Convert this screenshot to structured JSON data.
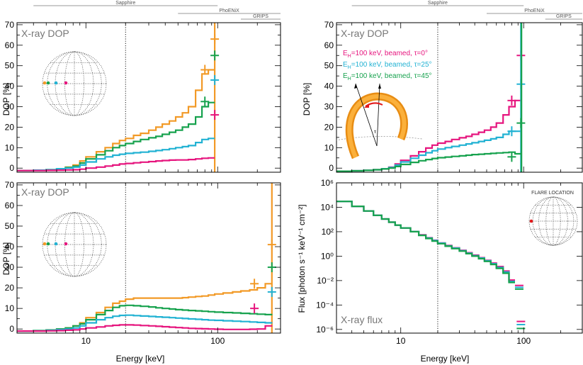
{
  "colors": {
    "tau0": "#e6157e",
    "tau25": "#22b2d3",
    "tau45": "#17a24e",
    "base": "#f29a27",
    "flare_dot": "#e31a1c"
  },
  "figure": {
    "instruments": [
      {
        "name": "Sapphire",
        "range": [
          4,
          100
        ]
      },
      {
        "name": "PhoENiX",
        "range": [
          50,
          300
        ]
      },
      {
        "name": "GRIPS",
        "range": [
          150,
          300
        ]
      }
    ],
    "xlabel": "Energy [keV]",
    "dop_ylabel": "DOP [%]",
    "flux_ylabel": "Flux [photon s⁻¹ keV⁻¹ cm⁻²]",
    "reference_energy_keV": 20
  },
  "panels": {
    "top_left": {
      "label": "X-ray DOP"
    },
    "bottom_left": {
      "label": "X-ray DOP"
    },
    "top_right": {
      "label": "X-ray DOP",
      "legend": [
        {
          "eh": "E",
          "sub": "H",
          "text": "=100 keV, beamed, τ=0°",
          "series": "tau0"
        },
        {
          "eh": "E",
          "sub": "H",
          "text": "=100 keV, beamed, τ=25°",
          "series": "tau25"
        },
        {
          "eh": "E",
          "sub": "H",
          "text": "=100 keV, beamed, τ=45°",
          "series": "tau45"
        }
      ]
    },
    "bottom_right": {
      "label": "X-ray flux",
      "inset_title": "FLARE LOCATION"
    }
  },
  "chart_data": [
    {
      "type": "line",
      "id": "top_left",
      "title": "X-ray DOP",
      "xlabel": "Energy [keV]",
      "ylabel": "DOP [%]",
      "xscale": "log",
      "xlim": [
        3,
        300
      ],
      "ylim": [
        -2,
        71
      ],
      "xticks": [
        10,
        100
      ],
      "yticks": [
        0,
        10,
        20,
        30,
        40,
        50,
        60,
        70
      ],
      "edges": [
        3,
        4,
        5,
        6,
        7,
        8,
        9,
        10,
        12,
        14,
        16,
        18,
        20,
        23,
        26,
        30,
        34,
        38,
        43,
        48,
        54,
        60,
        68,
        76,
        85,
        95
      ],
      "series": [
        {
          "name": "orange",
          "color_key": "base",
          "values": [
            -1.2,
            -1,
            -0.8,
            -0.3,
            0.5,
            1.5,
            3.5,
            5.5,
            8,
            10,
            12,
            13.5,
            14.5,
            16,
            17,
            18.5,
            20,
            21.5,
            23,
            25,
            27,
            30,
            38,
            46,
            48
          ],
          "pol_points": [
            {
              "x": 80,
              "y": 48
            },
            {
              "x": 95,
              "y": 63
            }
          ],
          "vline_x": 95
        },
        {
          "name": "green",
          "color_key": "tau45",
          "values": [
            -1.2,
            -1,
            -0.8,
            -0.3,
            0.3,
            1,
            2.5,
            4.5,
            6.5,
            8.5,
            10,
            11,
            12,
            13,
            14,
            14.8,
            15.5,
            16.5,
            17.5,
            18.5,
            20,
            21.5,
            25,
            30,
            32
          ],
          "pol_points": [
            {
              "x": 80,
              "y": 32.5
            },
            {
              "x": 95,
              "y": 55
            }
          ]
        },
        {
          "name": "cyan",
          "color_key": "tau25",
          "values": [
            -1.2,
            -1,
            -0.8,
            -0.3,
            0,
            0.5,
            1.5,
            3,
            4.5,
            5.5,
            6.3,
            6.8,
            7.2,
            7.5,
            7.8,
            8.2,
            8.6,
            9,
            9.5,
            10,
            10.5,
            11,
            12.5,
            14,
            14.5
          ],
          "pol_points": [
            {
              "x": 95,
              "y": 43
            }
          ]
        },
        {
          "name": "magenta",
          "color_key": "tau0",
          "values": [
            -1.2,
            -1.2,
            -1.1,
            -1,
            -0.9,
            -0.8,
            -0.5,
            0,
            0.5,
            1,
            1.5,
            2,
            2.3,
            2.6,
            2.9,
            3.2,
            3.5,
            3.7,
            3.9,
            4,
            4,
            4.2,
            4.5,
            4.8,
            5
          ],
          "pol_points": [
            {
              "x": 95,
              "y": 26
            }
          ]
        }
      ]
    },
    {
      "type": "line",
      "id": "bottom_left",
      "title": "X-ray DOP",
      "xlabel": "Energy [keV]",
      "ylabel": "DOP [%]",
      "xscale": "log",
      "xlim": [
        3,
        300
      ],
      "ylim": [
        -2,
        71
      ],
      "xticks": [
        10,
        100
      ],
      "yticks": [
        0,
        10,
        20,
        30,
        40,
        50,
        60,
        70
      ],
      "edges": [
        3,
        4,
        5,
        6,
        7,
        8,
        9,
        10,
        12,
        14,
        16,
        18,
        20,
        23,
        26,
        30,
        34,
        38,
        43,
        48,
        54,
        60,
        68,
        76,
        85,
        95,
        110,
        130,
        150,
        175,
        200,
        230,
        260
      ],
      "series": [
        {
          "name": "orange",
          "color_key": "base",
          "values": [
            -1,
            -0.8,
            -0.5,
            0,
            0.5,
            1.5,
            3,
            5.5,
            8,
            10.5,
            12.5,
            13.5,
            14.5,
            15,
            15,
            15,
            15,
            15,
            15,
            15,
            15.2,
            15.5,
            15.8,
            16,
            16.5,
            17,
            17.5,
            18,
            18.5,
            19,
            20,
            22
          ],
          "pol_points": [
            {
              "x": 190,
              "y": 22
            },
            {
              "x": 258,
              "y": 41
            }
          ],
          "vline_x": 258
        },
        {
          "name": "green",
          "color_key": "tau45",
          "values": [
            -1,
            -0.8,
            -0.5,
            0,
            0.5,
            1.5,
            2.5,
            4.5,
            7,
            9,
            10.5,
            11.3,
            11.5,
            11.3,
            11,
            10.7,
            10.3,
            10,
            9.7,
            9.4,
            9.2,
            9,
            8.8,
            8.6,
            8.4,
            8.2,
            8,
            7.8,
            7.6,
            7.4,
            7.2,
            7
          ],
          "pol_points": [
            {
              "x": 258,
              "y": 30
            }
          ]
        },
        {
          "name": "cyan",
          "color_key": "tau25",
          "values": [
            -1,
            -0.9,
            -0.7,
            -0.3,
            0,
            0.5,
            1.5,
            3,
            4.5,
            5.5,
            6.2,
            6.6,
            6.7,
            6.5,
            6.3,
            6.1,
            5.9,
            5.7,
            5.5,
            5.3,
            5.1,
            4.9,
            4.7,
            4.5,
            4.3,
            4.2,
            4,
            3.8,
            3.6,
            3.4,
            3.2,
            3
          ],
          "pol_points": [
            {
              "x": 258,
              "y": 18
            }
          ]
        },
        {
          "name": "magenta",
          "color_key": "tau0",
          "values": [
            -1,
            -1,
            -0.9,
            -0.8,
            -0.6,
            -0.4,
            0,
            0.5,
            1,
            1.5,
            1.8,
            2,
            2,
            1.9,
            1.7,
            1.5,
            1.3,
            1.1,
            0.9,
            0.7,
            0.5,
            0.3,
            0.2,
            0.1,
            0,
            -0.1,
            -0.2,
            -0.2,
            -0.2,
            -0.1,
            0,
            1.5
          ],
          "pol_points": [
            {
              "x": 190,
              "y": 10
            }
          ]
        }
      ]
    },
    {
      "type": "line",
      "id": "top_right",
      "title": "X-ray DOP",
      "xlabel": "Energy [keV]",
      "ylabel": "DOP [%]",
      "xscale": "log",
      "xlim": [
        3,
        300
      ],
      "ylim": [
        -2,
        71
      ],
      "xticks": [
        10,
        100
      ],
      "yticks": [
        0,
        10,
        20,
        30,
        40,
        50,
        60,
        70
      ],
      "edges": [
        3,
        4,
        5,
        6,
        7,
        8,
        9,
        10,
        12,
        14,
        16,
        18,
        20,
        23,
        26,
        30,
        34,
        38,
        43,
        48,
        54,
        60,
        68,
        76,
        85,
        95
      ],
      "series": [
        {
          "name": "τ=0°",
          "color_key": "tau0",
          "values": [
            -1.5,
            -1.3,
            -1.1,
            -0.8,
            -0.3,
            0.5,
            2,
            3.8,
            6,
            8,
            9.8,
            11.2,
            12.2,
            13,
            14,
            14.8,
            15.5,
            16.5,
            17.5,
            18.5,
            20,
            22,
            26,
            30,
            33
          ],
          "pol_points": [
            {
              "x": 80,
              "y": 33
            },
            {
              "x": 95,
              "y": 55
            }
          ]
        },
        {
          "name": "τ=25°",
          "color_key": "tau25",
          "values": [
            -1.5,
            -1.3,
            -1.1,
            -0.8,
            -0.3,
            0.3,
            1.5,
            3,
            4.8,
            6.3,
            7.5,
            8.5,
            9.3,
            10,
            10.6,
            11.2,
            11.8,
            12.4,
            13,
            13.6,
            14.3,
            15,
            16.5,
            18,
            18
          ],
          "pol_points": [
            {
              "x": 80,
              "y": 18
            },
            {
              "x": 95,
              "y": 41
            }
          ],
          "vline_x": 95
        },
        {
          "name": "τ=45°",
          "color_key": "tau45",
          "values": [
            -1.5,
            -1.3,
            -1.1,
            -0.8,
            -0.4,
            0,
            0.8,
            1.8,
            2.8,
            3.6,
            4.2,
            4.7,
            5.1,
            5.4,
            5.7,
            6,
            6.3,
            6.6,
            6.8,
            7,
            7.2,
            7.4,
            7.6,
            7.8,
            7
          ],
          "pol_points": [
            {
              "x": 80,
              "y": 5.5
            },
            {
              "x": 95,
              "y": 22
            }
          ],
          "vline_x": 96
        }
      ]
    },
    {
      "type": "line",
      "id": "bottom_right",
      "title": "X-ray flux",
      "xlabel": "Energy [keV]",
      "ylabel": "Flux [photon s⁻¹ keV⁻¹ cm⁻²]",
      "xscale": "log",
      "yscale": "log",
      "xlim": [
        3,
        300
      ],
      "ylim": [
        5e-07,
        1000000
      ],
      "xticks": [
        10,
        100
      ],
      "yticks": [
        1e-06,
        0.0001,
        0.01,
        1,
        100,
        10000,
        1000000
      ],
      "ytick_labels": [
        "10⁻⁶",
        "10⁻⁴",
        "10⁻²",
        "10⁰",
        "10²",
        "10⁴",
        "10⁶"
      ],
      "edges": [
        3,
        4,
        5,
        6,
        7,
        8,
        9,
        10,
        12,
        14,
        16,
        18,
        20,
        23,
        26,
        30,
        34,
        38,
        43,
        48,
        54,
        60,
        68,
        76,
        85
      ],
      "series": [
        {
          "name": "τ=0°",
          "color_key": "tau0",
          "values": [
            30000,
            12000,
            5000,
            2200,
            1100,
            600,
            350,
            200,
            100,
            55,
            32,
            20,
            12,
            7.5,
            4.8,
            3,
            1.9,
            1.2,
            0.75,
            0.45,
            0.27,
            0.14,
            0.06,
            0.011
          ],
          "extra_points": [
            {
              "x": 92,
              "y": 0.004
            },
            {
              "x": 95,
              "y": 4.5e-06
            }
          ]
        },
        {
          "name": "τ=25°",
          "color_key": "tau25",
          "values": [
            30000,
            12000,
            5000,
            2200,
            1100,
            600,
            350,
            200,
            100,
            52,
            30,
            19,
            11.5,
            7,
            4.5,
            2.8,
            1.75,
            1.1,
            0.7,
            0.42,
            0.24,
            0.12,
            0.05,
            0.0085
          ],
          "extra_points": [
            {
              "x": 92,
              "y": 0.0028
            },
            {
              "x": 95,
              "y": 2.5e-06
            }
          ]
        },
        {
          "name": "τ=45°",
          "color_key": "tau45",
          "values": [
            30000,
            12000,
            5000,
            2200,
            1100,
            600,
            350,
            200,
            100,
            50,
            28,
            17,
            10.5,
            6.5,
            4.1,
            2.6,
            1.6,
            1,
            0.62,
            0.37,
            0.21,
            0.1,
            0.04,
            0.007
          ],
          "extra_points": [
            {
              "x": 92,
              "y": 0.002
            },
            {
              "x": 95,
              "y": 1.2e-06
            }
          ]
        }
      ]
    }
  ]
}
